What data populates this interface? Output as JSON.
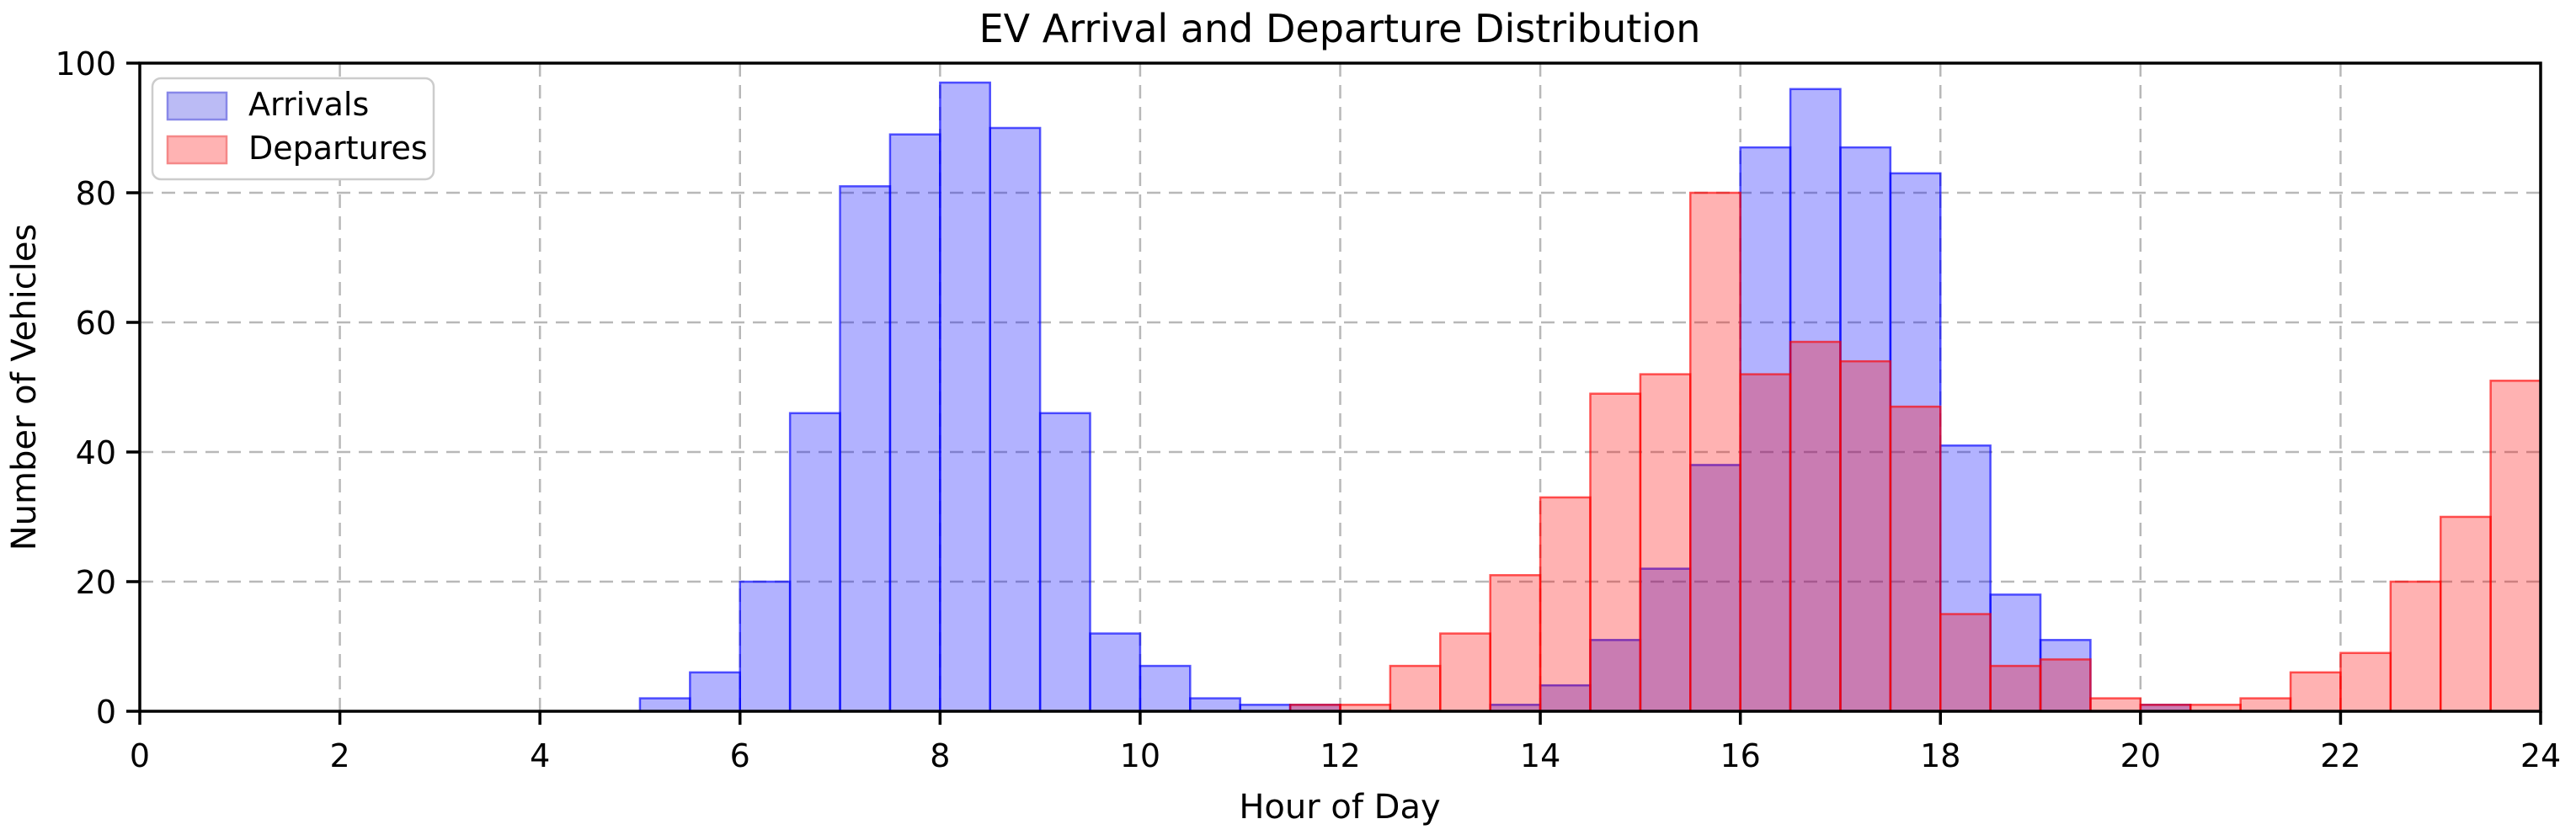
{
  "chart_data": {
    "type": "bar",
    "subtype": "overlapping-histogram",
    "title": "EV Arrival and Departure Distribution",
    "xlabel": "Hour of Day",
    "ylabel": "Number of Vehicles",
    "xlim": [
      0,
      24
    ],
    "ylim": [
      0,
      100
    ],
    "xticks": [
      0,
      2,
      4,
      6,
      8,
      10,
      12,
      14,
      16,
      18,
      20,
      22,
      24
    ],
    "yticks": [
      0,
      20,
      40,
      60,
      80,
      100
    ],
    "grid": "dashed-both-axes",
    "legend_position": "upper-left",
    "bin_width": 0.5,
    "series": [
      {
        "name": "Arrivals",
        "fill": "rgba(0,0,255,0.30)",
        "stroke": "rgba(0,0,255,0.65)",
        "swatch_fill": "#bbbbf5",
        "swatch_stroke": "#8888e8",
        "bins": [
          [
            5.0,
            2
          ],
          [
            5.5,
            6
          ],
          [
            6.0,
            20
          ],
          [
            6.5,
            46
          ],
          [
            7.0,
            81
          ],
          [
            7.5,
            89
          ],
          [
            8.0,
            97
          ],
          [
            8.5,
            90
          ],
          [
            9.0,
            46
          ],
          [
            9.5,
            12
          ],
          [
            10.0,
            7
          ],
          [
            10.5,
            2
          ],
          [
            11.0,
            1
          ],
          [
            11.5,
            1
          ],
          [
            13.5,
            1
          ],
          [
            14.0,
            4
          ],
          [
            14.5,
            11
          ],
          [
            15.0,
            22
          ],
          [
            15.5,
            38
          ],
          [
            16.0,
            87
          ],
          [
            16.5,
            96
          ],
          [
            17.0,
            87
          ],
          [
            17.5,
            83
          ],
          [
            18.0,
            41
          ],
          [
            18.5,
            18
          ],
          [
            19.0,
            11
          ],
          [
            20.0,
            1
          ]
        ]
      },
      {
        "name": "Departures",
        "fill": "rgba(255,0,0,0.30)",
        "stroke": "rgba(255,0,0,0.65)",
        "swatch_fill": "#ffb3b3",
        "swatch_stroke": "#f58888",
        "bins": [
          [
            11.5,
            1
          ],
          [
            12.0,
            1
          ],
          [
            12.5,
            7
          ],
          [
            13.0,
            12
          ],
          [
            13.5,
            21
          ],
          [
            14.0,
            33
          ],
          [
            14.5,
            49
          ],
          [
            15.0,
            52
          ],
          [
            15.5,
            80
          ],
          [
            16.0,
            52
          ],
          [
            16.5,
            57
          ],
          [
            17.0,
            54
          ],
          [
            17.5,
            47
          ],
          [
            18.0,
            15
          ],
          [
            18.5,
            7
          ],
          [
            19.0,
            8
          ],
          [
            19.5,
            2
          ],
          [
            20.0,
            1
          ],
          [
            20.5,
            1
          ],
          [
            21.0,
            2
          ],
          [
            21.5,
            6
          ],
          [
            22.0,
            9
          ],
          [
            22.5,
            20
          ],
          [
            23.0,
            30
          ],
          [
            23.5,
            51
          ]
        ]
      }
    ],
    "colors": {
      "gridline": "#b8b8b8",
      "spine": "#000000",
      "background": "#ffffff",
      "legend_border": "#cccccc"
    }
  }
}
